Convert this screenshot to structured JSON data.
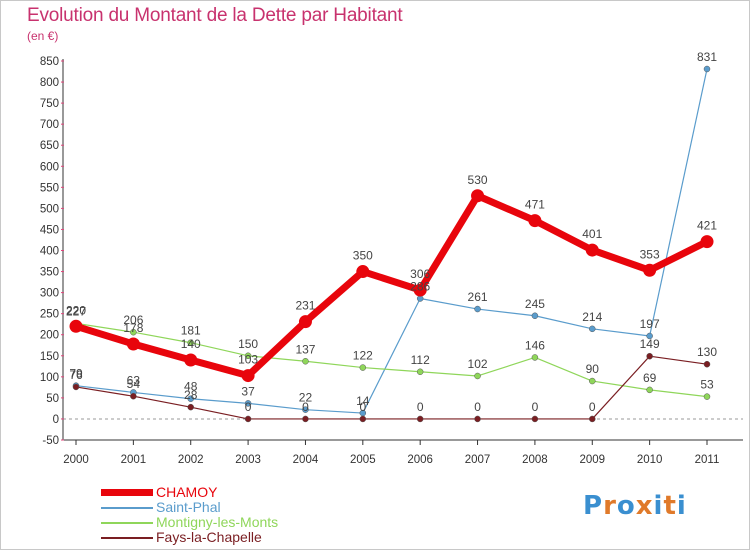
{
  "title": "Evolution du Montant de la Dette par Habitant",
  "subtitle": "(en €)",
  "logo_letters": [
    "P",
    "r",
    "o",
    "x",
    "i",
    "t",
    "i"
  ],
  "colors": {
    "title": "#c8326e",
    "logo": [
      "#3a8fd0",
      "#e07a2a",
      "#3a8fd0",
      "#e07a2a",
      "#3a8fd0",
      "#e07a2a",
      "#3a8fd0"
    ]
  },
  "chart_data": {
    "type": "line",
    "title": "Evolution du Montant de la Dette par Habitant",
    "subtitle": "(en €)",
    "x": [
      "2000",
      "2001",
      "2002",
      "2003",
      "2004",
      "2005",
      "2006",
      "2007",
      "2008",
      "2009",
      "2010",
      "2011"
    ],
    "ylim": [
      -50,
      850
    ],
    "yticks": [
      -50,
      0,
      50,
      100,
      150,
      200,
      250,
      300,
      350,
      400,
      450,
      500,
      550,
      600,
      650,
      700,
      750,
      800,
      850
    ],
    "grid": false,
    "legend_position": "bottom-left",
    "series": [
      {
        "name": "CHAMOY",
        "color": "#e8050c",
        "line_width": 7,
        "marker_r": 6.5,
        "values": [
          220,
          178,
          140,
          103,
          231,
          350,
          306,
          530,
          471,
          401,
          353,
          421
        ],
        "labels": [
          "220",
          "178",
          "140",
          "103",
          "231",
          "350",
          "306",
          "530",
          "471",
          "401",
          "353",
          "421"
        ]
      },
      {
        "name": "Saint-Phal",
        "color": "#5a9ccc",
        "line_width": 1.2,
        "marker_r": 3,
        "values": [
          79,
          63,
          48,
          37,
          22,
          14,
          286,
          261,
          245,
          214,
          197,
          831
        ],
        "labels": [
          "79",
          "63",
          "48",
          "37",
          "22",
          "14",
          "286",
          "261",
          "245",
          "214",
          "197",
          "831"
        ]
      },
      {
        "name": "Montigny-les-Monts",
        "color": "#8fd65a",
        "line_width": 1.2,
        "marker_r": 3,
        "values": [
          227,
          206,
          181,
          150,
          137,
          122,
          112,
          102,
          146,
          90,
          69,
          53
        ],
        "labels": [
          "227",
          "206",
          "181",
          "150",
          "137",
          "122",
          "112",
          "102",
          "146",
          "90",
          "69",
          "53"
        ]
      },
      {
        "name": "Fays-la-Chapelle",
        "color": "#7a1e22",
        "line_width": 1.2,
        "marker_r": 3,
        "values": [
          76,
          54,
          28,
          0,
          0,
          0,
          0,
          0,
          0,
          0,
          149,
          130
        ],
        "labels": [
          "76",
          "54",
          "28",
          "0",
          "0",
          "0",
          "0",
          "0",
          "0",
          "0",
          "149",
          "130"
        ]
      }
    ]
  }
}
